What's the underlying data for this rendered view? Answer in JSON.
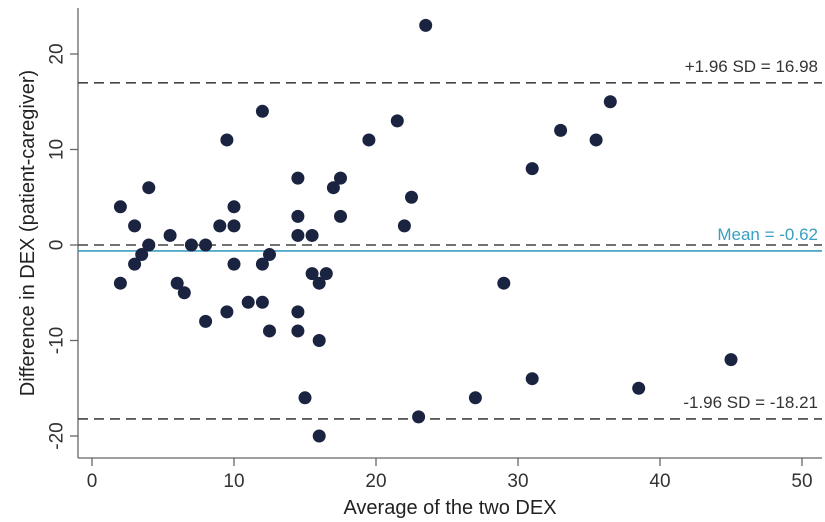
{
  "chart_data": {
    "type": "scatter",
    "xlabel": "Average of the two DEX",
    "ylabel": "Difference in DEX (patient-caregiver)",
    "xlim": [
      0,
      50
    ],
    "ylim": [
      -20,
      23
    ],
    "x_ticks": [
      "0",
      "10",
      "20",
      "30",
      "40",
      "50"
    ],
    "y_ticks": [
      "-20",
      "-10",
      "0",
      "10",
      "20"
    ],
    "grid": false,
    "point_color": "#1a2340",
    "mean_line": {
      "value": -0.62,
      "label": "Mean = -0.62",
      "color": "#3a9fc0"
    },
    "upper_loa": {
      "value": 16.98,
      "label": "+1.96 SD = 16.98",
      "color": "#444444"
    },
    "lower_loa": {
      "value": -18.21,
      "label": "-1.96 SD = -18.21",
      "color": "#444444"
    },
    "zero_line": {
      "value": 0,
      "color": "#444444"
    },
    "points": [
      {
        "x": 2,
        "y": 4
      },
      {
        "x": 2,
        "y": -4
      },
      {
        "x": 3,
        "y": 2
      },
      {
        "x": 3,
        "y": -2
      },
      {
        "x": 3.5,
        "y": -1
      },
      {
        "x": 4,
        "y": 6
      },
      {
        "x": 4,
        "y": 0
      },
      {
        "x": 5.5,
        "y": 1
      },
      {
        "x": 6,
        "y": -4
      },
      {
        "x": 6.5,
        "y": -5
      },
      {
        "x": 7,
        "y": 0
      },
      {
        "x": 8,
        "y": 0
      },
      {
        "x": 8,
        "y": -8
      },
      {
        "x": 9,
        "y": 2
      },
      {
        "x": 9.5,
        "y": 11
      },
      {
        "x": 9.5,
        "y": -7
      },
      {
        "x": 10,
        "y": 4
      },
      {
        "x": 10,
        "y": 2
      },
      {
        "x": 10,
        "y": -2
      },
      {
        "x": 11,
        "y": -6
      },
      {
        "x": 12,
        "y": 14
      },
      {
        "x": 12,
        "y": -2
      },
      {
        "x": 12,
        "y": -6
      },
      {
        "x": 12.5,
        "y": -1
      },
      {
        "x": 12.5,
        "y": -9
      },
      {
        "x": 14.5,
        "y": 7
      },
      {
        "x": 14.5,
        "y": 3
      },
      {
        "x": 14.5,
        "y": 1
      },
      {
        "x": 14.5,
        "y": -7
      },
      {
        "x": 14.5,
        "y": -9
      },
      {
        "x": 15,
        "y": -16
      },
      {
        "x": 15.5,
        "y": 1
      },
      {
        "x": 15.5,
        "y": -3
      },
      {
        "x": 16,
        "y": -4
      },
      {
        "x": 16,
        "y": -10
      },
      {
        "x": 16,
        "y": -20
      },
      {
        "x": 16.5,
        "y": -3
      },
      {
        "x": 17,
        "y": 6
      },
      {
        "x": 17.5,
        "y": 7
      },
      {
        "x": 17.5,
        "y": 3
      },
      {
        "x": 19.5,
        "y": 11
      },
      {
        "x": 21.5,
        "y": 13
      },
      {
        "x": 22,
        "y": 2
      },
      {
        "x": 22.5,
        "y": 5
      },
      {
        "x": 23,
        "y": -18
      },
      {
        "x": 23.5,
        "y": 23
      },
      {
        "x": 27,
        "y": -16
      },
      {
        "x": 29,
        "y": -4
      },
      {
        "x": 31,
        "y": 8
      },
      {
        "x": 31,
        "y": -14
      },
      {
        "x": 33,
        "y": 12
      },
      {
        "x": 35.5,
        "y": 11
      },
      {
        "x": 36.5,
        "y": 15
      },
      {
        "x": 38.5,
        "y": -15
      },
      {
        "x": 45,
        "y": -12
      }
    ]
  }
}
